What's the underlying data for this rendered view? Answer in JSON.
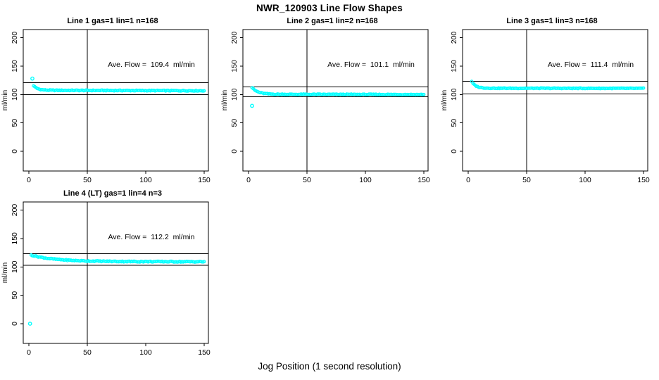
{
  "figure": {
    "title": "NWR_120903  Line Flow Shapes",
    "xlabel": "Jog Position (1 second resolution)",
    "point_color": "#00FFFF",
    "axis_color": "#000000"
  },
  "chart_data": [
    {
      "type": "scatter",
      "title": "Line 1 gas=1 lin=1 n=168",
      "annotation": "Ave. Flow =  109.4  ml/min",
      "ave_flow_ml_min": 109.4,
      "n": 168,
      "ylabel": "ml/min",
      "xticks": [
        0,
        50,
        100,
        150
      ],
      "yticks": [
        0,
        50,
        100,
        150,
        200
      ],
      "xlim": [
        -6,
        156
      ],
      "ylim": [
        -35,
        214
      ],
      "vline_x": 50,
      "hlines_y": [
        120.6,
        100.0
      ],
      "series_model": {
        "x_start": 4,
        "x_end": 150,
        "x_step": 1,
        "settle": 107.4,
        "amp": 8.0,
        "tau": 3.5,
        "drift": -0.8,
        "jitter": 0.7,
        "seed": 1
      },
      "outliers": [
        [
          3,
          128
        ]
      ]
    },
    {
      "type": "scatter",
      "title": "Line 2 gas=1 lin=2 n=168",
      "annotation": "Ave. Flow =  101.1  ml/min",
      "ave_flow_ml_min": 101.1,
      "n": 168,
      "ylabel": "ml/min",
      "xticks": [
        0,
        50,
        100,
        150
      ],
      "yticks": [
        0,
        50,
        100,
        150,
        200
      ],
      "xlim": [
        -6,
        156
      ],
      "ylim": [
        -35,
        214
      ],
      "vline_x": 50,
      "hlines_y": [
        113.5,
        96.2
      ],
      "series_model": {
        "x_start": 3,
        "x_end": 150,
        "x_step": 1,
        "settle": 100.3,
        "amp": 11.7,
        "tau": 5,
        "drift": -0.4,
        "jitter": 0.7,
        "seed": 2
      },
      "outliers": [
        [
          3,
          80
        ]
      ]
    },
    {
      "type": "scatter",
      "title": "Line 3 gas=1 lin=3 n=168",
      "annotation": "Ave. Flow =  111.4  ml/min",
      "ave_flow_ml_min": 111.4,
      "n": 168,
      "ylabel": "ml/min",
      "xticks": [
        0,
        50,
        100,
        150
      ],
      "yticks": [
        0,
        50,
        100,
        150,
        200
      ],
      "xlim": [
        -6,
        156
      ],
      "ylim": [
        -35,
        214
      ],
      "vline_x": 50,
      "hlines_y": [
        123.5,
        101.2
      ],
      "series_model": {
        "x_start": 3,
        "x_end": 150,
        "x_step": 1,
        "settle": 111.0,
        "amp": 11.5,
        "tau": 3.5,
        "drift": -0.3,
        "jitter": 0.6,
        "seed": 3
      },
      "outliers": []
    },
    {
      "type": "scatter",
      "title": "Line 4 (LT) gas=1 lin=4 n=3",
      "annotation": "Ave. Flow =  112.2  ml/min",
      "ave_flow_ml_min": 112.2,
      "n": 3,
      "ylabel": "ml/min",
      "xticks": [
        0,
        50,
        100,
        150
      ],
      "yticks": [
        0,
        50,
        100,
        150,
        200
      ],
      "xlim": [
        -6,
        156
      ],
      "ylim": [
        -35,
        214
      ],
      "vline_x": 50,
      "hlines_y": [
        123.4,
        103.0
      ],
      "series_model": {
        "x_start": 2,
        "x_end": 150,
        "x_step": 1,
        "settle": 109.6,
        "amp": 11.2,
        "tau": 20,
        "drift": -0.6,
        "jitter": 0.8,
        "seed": 4
      },
      "outliers": [
        [
          1,
          0
        ]
      ]
    }
  ]
}
